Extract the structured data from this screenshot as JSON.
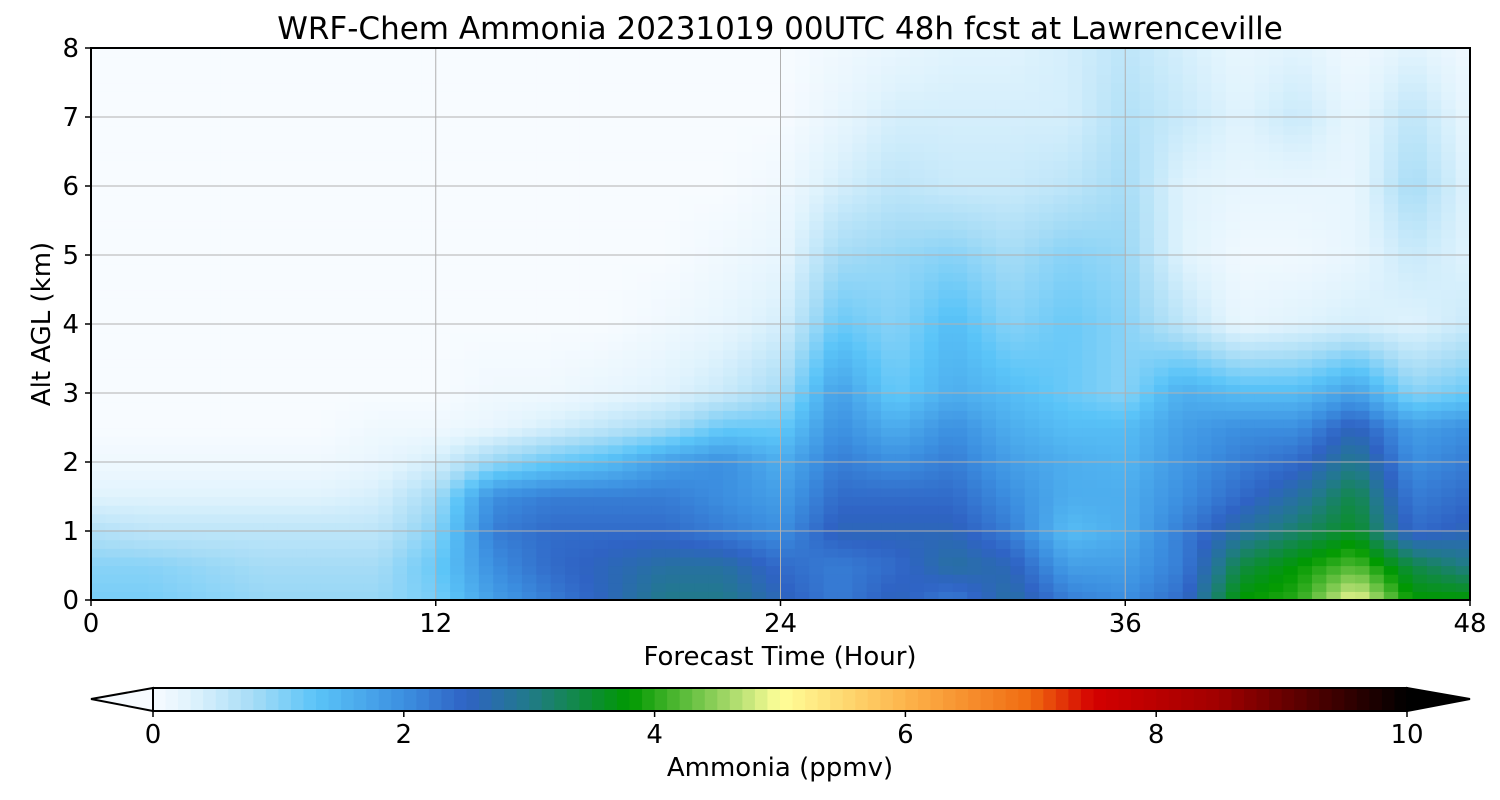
{
  "chart_data": {
    "type": "heatmap",
    "title": "WRF-Chem Ammonia  20231019 00UTC 48h fcst at Lawrenceville",
    "xlabel": "Forecast Time (Hour)",
    "ylabel": "Alt AGL (km)",
    "xlim": [
      0,
      48
    ],
    "ylim": [
      0,
      8
    ],
    "x_ticks": [
      "0",
      "12",
      "24",
      "36",
      "48"
    ],
    "y_ticks": [
      "0",
      "1",
      "2",
      "3",
      "4",
      "5",
      "6",
      "7",
      "8"
    ],
    "grid": true,
    "x": [
      0,
      2,
      4,
      6,
      8,
      10,
      12,
      14,
      16,
      18,
      20,
      22,
      24,
      26,
      28,
      30,
      32,
      34,
      36,
      38,
      40,
      42,
      44,
      46,
      48
    ],
    "y": [
      0,
      0.5,
      1,
      1.5,
      2,
      2.5,
      3,
      4,
      5,
      6,
      7,
      8
    ],
    "z": [
      [
        1.1,
        1.1,
        1.0,
        0.9,
        0.9,
        0.9,
        1.1,
        1.8,
        2.2,
        2.6,
        3.0,
        3.0,
        2.6,
        2.2,
        2.6,
        2.2,
        2.8,
        2.2,
        2.0,
        2.4,
        3.8,
        4.0,
        5.0,
        3.8,
        3.8
      ],
      [
        1.0,
        1.0,
        0.9,
        0.8,
        0.8,
        0.8,
        1.2,
        2.0,
        2.4,
        2.6,
        2.8,
        2.8,
        2.4,
        2.2,
        2.4,
        2.8,
        2.6,
        1.8,
        1.8,
        2.2,
        3.4,
        3.8,
        4.2,
        3.4,
        3.0
      ],
      [
        0.7,
        0.6,
        0.6,
        0.6,
        0.6,
        0.6,
        1.0,
        2.2,
        2.4,
        2.4,
        2.4,
        2.2,
        2.0,
        2.6,
        2.6,
        2.6,
        2.2,
        1.4,
        1.6,
        2.2,
        2.8,
        3.2,
        3.6,
        2.4,
        2.6
      ],
      [
        0.3,
        0.3,
        0.3,
        0.3,
        0.3,
        0.4,
        0.8,
        2.0,
        2.2,
        2.2,
        2.2,
        2.0,
        1.8,
        2.4,
        2.4,
        2.4,
        2.0,
        1.6,
        1.6,
        2.0,
        2.4,
        2.8,
        3.4,
        2.2,
        2.4
      ],
      [
        0.1,
        0.1,
        0.1,
        0.1,
        0.1,
        0.2,
        0.4,
        0.9,
        1.2,
        1.4,
        1.8,
        2.0,
        1.6,
        2.2,
        2.0,
        2.2,
        1.8,
        1.6,
        1.5,
        1.9,
        2.2,
        2.4,
        3.0,
        2.0,
        2.2
      ],
      [
        0.0,
        0.0,
        0.0,
        0.0,
        0.0,
        0.1,
        0.1,
        0.2,
        0.4,
        0.6,
        0.8,
        1.2,
        1.2,
        2.0,
        1.6,
        2.0,
        1.6,
        1.4,
        1.4,
        1.8,
        2.0,
        2.0,
        2.6,
        1.8,
        2.0
      ],
      [
        0.0,
        0.0,
        0.0,
        0.0,
        0.0,
        0.0,
        0.0,
        0.1,
        0.1,
        0.2,
        0.3,
        0.5,
        0.8,
        1.8,
        1.2,
        1.6,
        1.4,
        1.2,
        1.0,
        1.6,
        1.4,
        1.4,
        1.8,
        1.0,
        1.2
      ],
      [
        0.0,
        0.0,
        0.0,
        0.0,
        0.0,
        0.0,
        0.0,
        0.0,
        0.0,
        0.0,
        0.1,
        0.2,
        0.4,
        1.2,
        1.0,
        1.4,
        1.0,
        1.2,
        1.0,
        0.6,
        0.2,
        0.3,
        0.4,
        0.3,
        0.5
      ],
      [
        0.0,
        0.0,
        0.0,
        0.0,
        0.0,
        0.0,
        0.0,
        0.0,
        0.0,
        0.0,
        0.0,
        0.1,
        0.2,
        0.8,
        0.9,
        1.0,
        0.8,
        1.0,
        0.9,
        0.3,
        0.1,
        0.1,
        0.2,
        0.5,
        0.3
      ],
      [
        0.0,
        0.0,
        0.0,
        0.0,
        0.0,
        0.0,
        0.0,
        0.0,
        0.0,
        0.0,
        0.0,
        0.0,
        0.1,
        0.4,
        0.6,
        0.5,
        0.5,
        0.6,
        0.8,
        0.3,
        0.2,
        0.2,
        0.2,
        0.8,
        0.3
      ],
      [
        0.0,
        0.0,
        0.0,
        0.0,
        0.0,
        0.0,
        0.0,
        0.0,
        0.0,
        0.0,
        0.0,
        0.0,
        0.0,
        0.2,
        0.4,
        0.4,
        0.4,
        0.4,
        0.7,
        0.5,
        0.3,
        0.5,
        0.2,
        0.6,
        0.2
      ],
      [
        0.0,
        0.0,
        0.0,
        0.0,
        0.0,
        0.0,
        0.0,
        0.0,
        0.0,
        0.0,
        0.0,
        0.0,
        0.0,
        0.1,
        0.2,
        0.3,
        0.3,
        0.4,
        0.6,
        0.4,
        0.2,
        0.3,
        0.1,
        0.3,
        0.1
      ]
    ],
    "colorbar": {
      "label": "Ammonia  (ppmv)",
      "ticks": [
        "0",
        "2",
        "4",
        "6",
        "8",
        "10"
      ],
      "range": [
        0,
        10
      ],
      "extend": "both",
      "stops": [
        {
          "v": 0.0,
          "c": "#f7fbff"
        },
        {
          "v": 0.3,
          "c": "#e0f3fd"
        },
        {
          "v": 0.8,
          "c": "#a6dcf6"
        },
        {
          "v": 1.3,
          "c": "#5ac4f8"
        },
        {
          "v": 2.0,
          "c": "#3c8fe0"
        },
        {
          "v": 2.5,
          "c": "#2f63c4"
        },
        {
          "v": 3.0,
          "c": "#217a8a"
        },
        {
          "v": 3.8,
          "c": "#009900"
        },
        {
          "v": 4.6,
          "c": "#a6d96a"
        },
        {
          "v": 5.0,
          "c": "#ffff99"
        },
        {
          "v": 6.0,
          "c": "#fdb44b"
        },
        {
          "v": 7.0,
          "c": "#f06a10"
        },
        {
          "v": 7.5,
          "c": "#d40000"
        },
        {
          "v": 8.5,
          "c": "#a00000"
        },
        {
          "v": 10.0,
          "c": "#000000"
        }
      ]
    }
  }
}
